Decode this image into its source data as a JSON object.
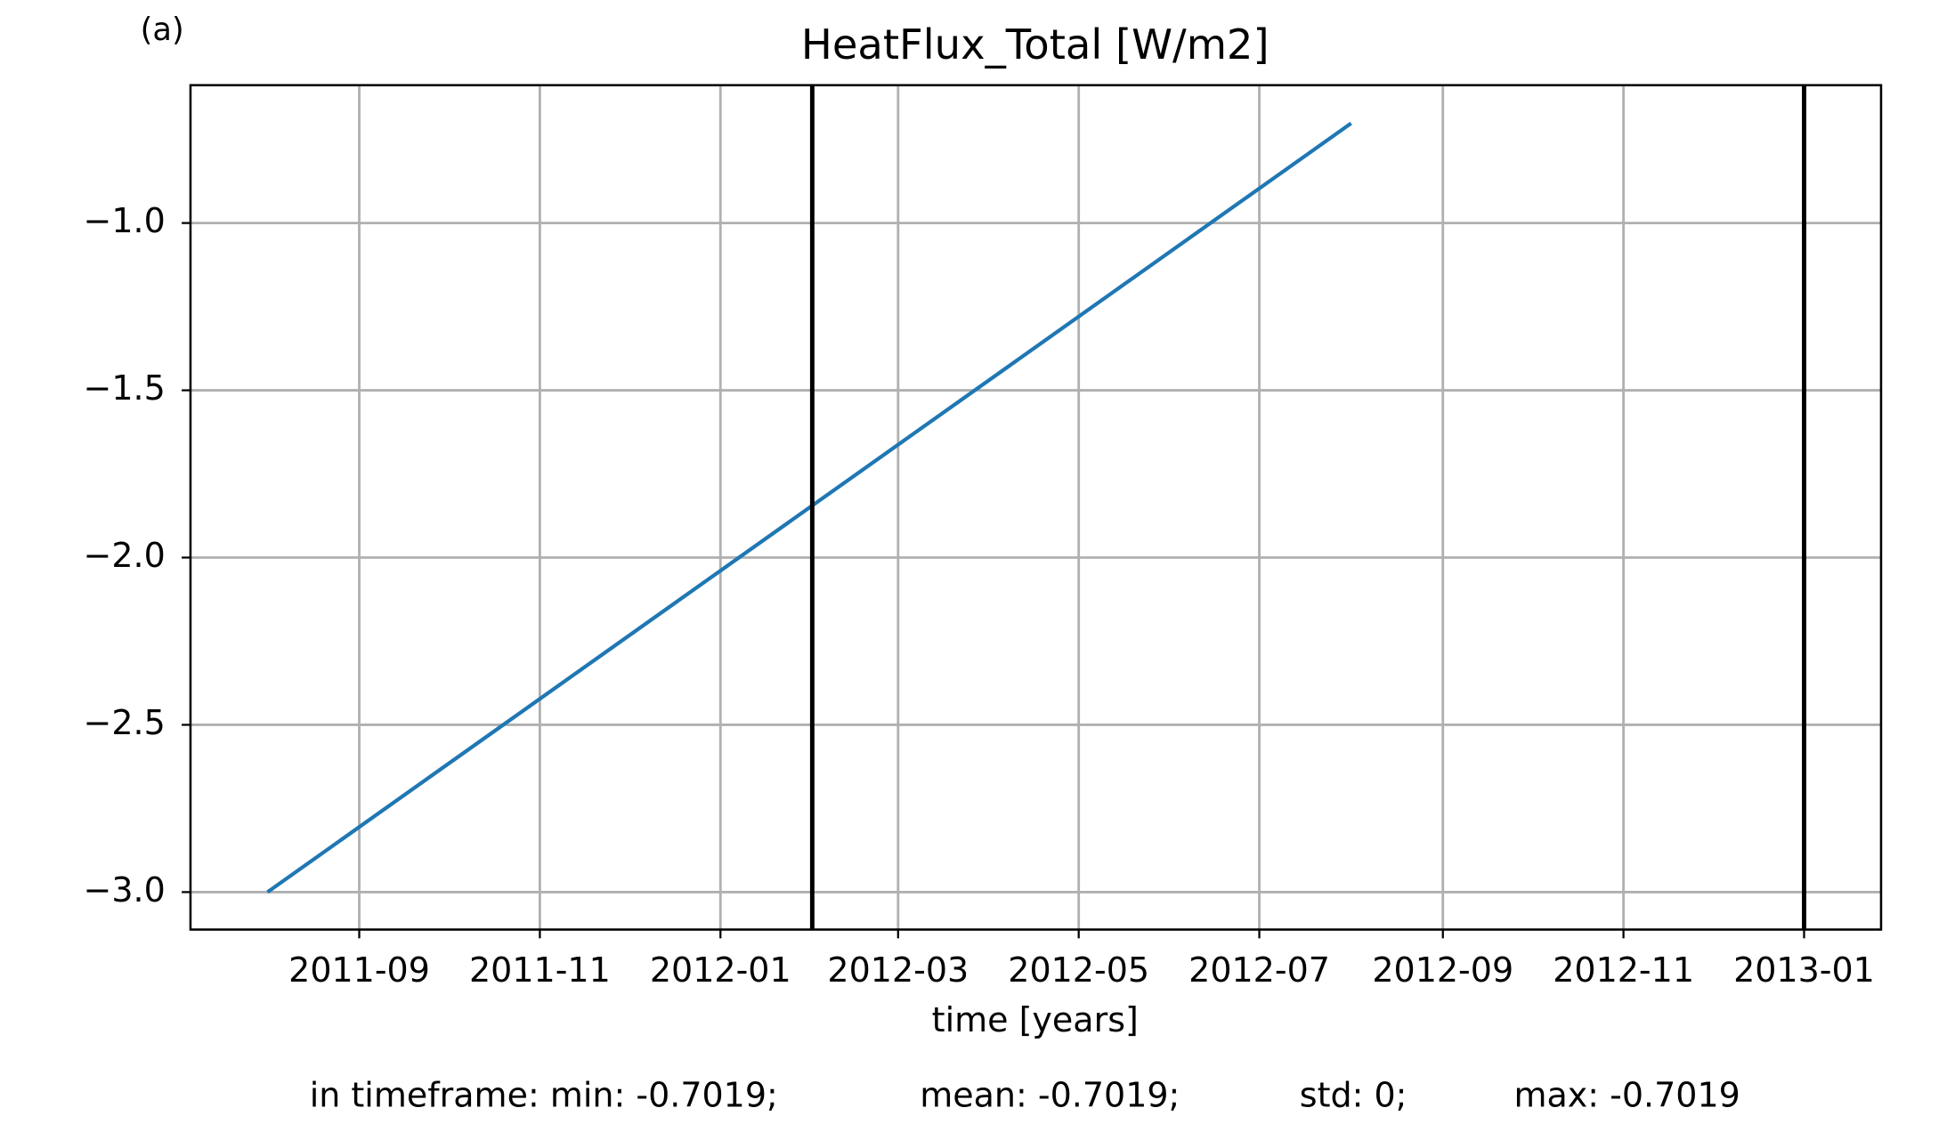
{
  "chart_data": {
    "type": "line",
    "panel_label": "(a)",
    "title": "HeatFlux_Total [W/m2]",
    "xlabel": "time [years]",
    "footer": [
      "in timeframe: min: -0.7019;",
      "mean: -0.7019;",
      "std: 0;",
      "max: -0.7019"
    ],
    "x": [
      "2011-08",
      "2012-08"
    ],
    "series": [
      {
        "name": "HeatFlux_Total",
        "color": "#1f77b4",
        "values": [
          -3.0,
          -0.7019
        ]
      }
    ],
    "vlines": [
      "2012-02",
      "2013-01"
    ],
    "vline_color": "#000000",
    "xlim": [
      "2011-07-06",
      "2013-01-27"
    ],
    "xticks": [
      "2011-09",
      "2011-11",
      "2012-01",
      "2012-03",
      "2012-05",
      "2012-07",
      "2012-09",
      "2012-11",
      "2013-01"
    ],
    "ylim": [
      -3.112,
      -0.588
    ],
    "yticks": [
      {
        "value": -3.0,
        "label": "−3.0"
      },
      {
        "value": -2.5,
        "label": "−2.5"
      },
      {
        "value": -2.0,
        "label": "−2.0"
      },
      {
        "value": -1.5,
        "label": "−1.5"
      },
      {
        "value": -1.0,
        "label": "−1.0"
      }
    ],
    "grid": true
  }
}
